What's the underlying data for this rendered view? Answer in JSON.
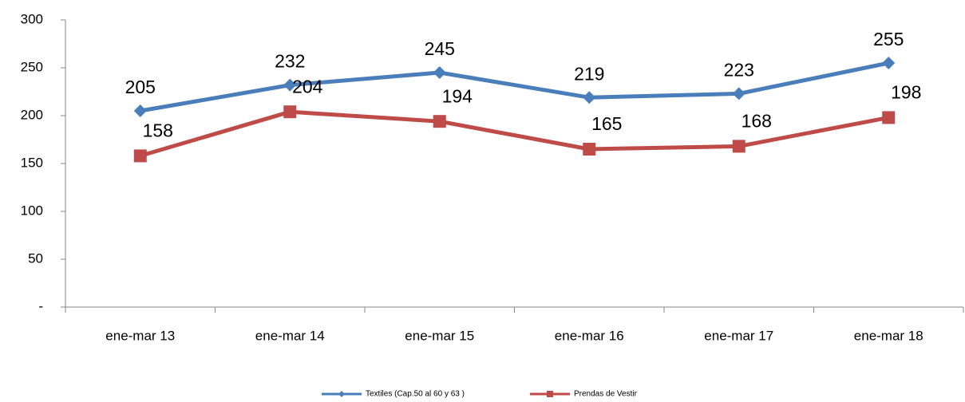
{
  "chart_data": {
    "type": "line",
    "categories": [
      "ene-mar 13",
      "ene-mar 14",
      "ene-mar 15",
      "ene-mar 16",
      "ene-mar 17",
      "ene-mar 18"
    ],
    "series": [
      {
        "name": "Textiles (Cap.50 al 60 y 63 )",
        "color": "#4a7ebb",
        "marker": "diamond",
        "values": [
          205,
          232,
          245,
          219,
          223,
          255
        ]
      },
      {
        "name": "Prendas de Vestir",
        "color": "#be4b48",
        "marker": "square",
        "values": [
          158,
          204,
          194,
          165,
          168,
          198
        ]
      }
    ],
    "ylim": [
      0,
      300
    ],
    "yticks": [
      {
        "value": 0,
        "label": "-"
      },
      50,
      100,
      150,
      200,
      250,
      300
    ],
    "grid": false,
    "legend": "bottom"
  }
}
